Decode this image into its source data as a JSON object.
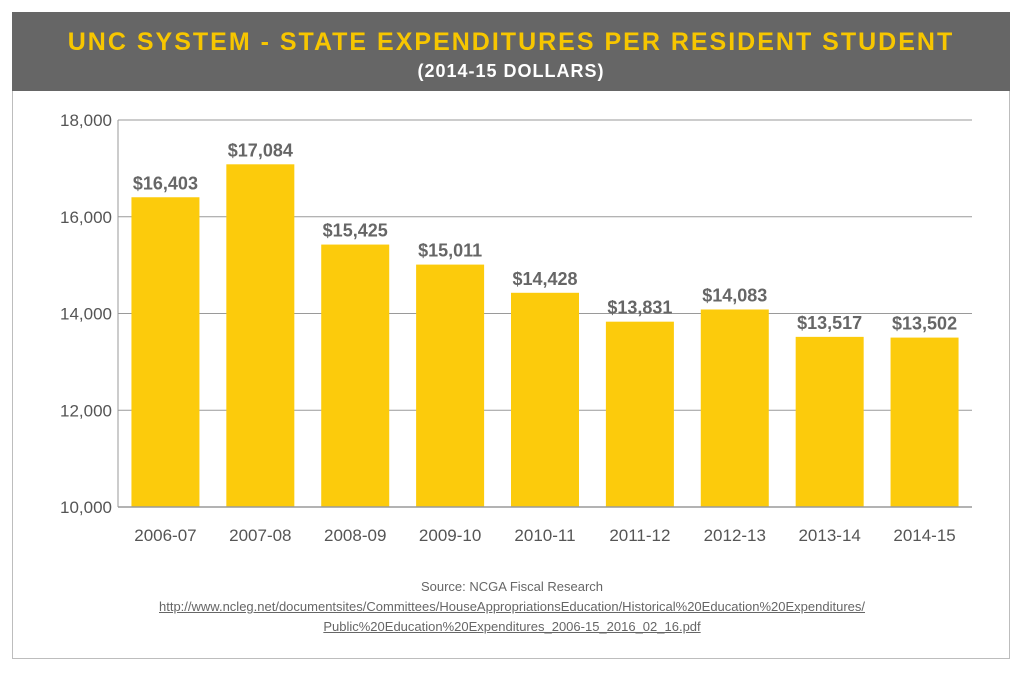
{
  "chart_data": {
    "type": "bar",
    "title": "UNC SYSTEM - STATE EXPENDITURES PER RESIDENT STUDENT",
    "subtitle": "(2014-15 DOLLARS)",
    "categories": [
      "2006-07",
      "2007-08",
      "2008-09",
      "2009-10",
      "2010-11",
      "2011-12",
      "2012-13",
      "2013-14",
      "2014-15"
    ],
    "values": [
      16403,
      17084,
      15425,
      15011,
      14428,
      13831,
      14083,
      13517,
      13502
    ],
    "data_labels": [
      "$16,403",
      "$17,084",
      "$15,425",
      "$15,011",
      "$14,428",
      "$13,831",
      "$14,083",
      "$13,517",
      "$13,502"
    ],
    "yticks": [
      10000,
      12000,
      14000,
      16000,
      18000
    ],
    "ytick_labels": [
      "10,000",
      "12,000",
      "14,000",
      "16,000",
      "18,000"
    ],
    "ylim": [
      10000,
      18000
    ],
    "xlabel": "",
    "ylabel": "",
    "grid": true,
    "bar_color": "#fccb0c"
  },
  "source": {
    "label": "Source: NCGA Fiscal Research",
    "url_line1": "http://www.ncleg.net/documentsites/Committees/HouseAppropriationsEducation/Historical%20Education%20Expenditures/",
    "url_line2": "Public%20Education%20Expenditures_2006-15_2016_02_16.pdf"
  }
}
